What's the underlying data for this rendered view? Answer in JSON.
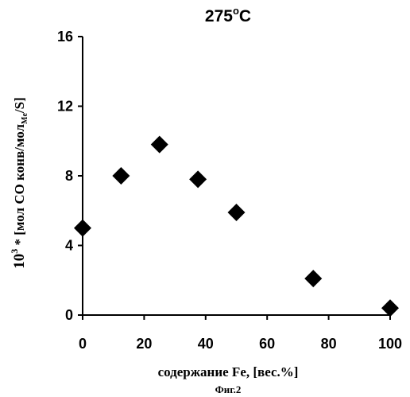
{
  "chart_data": {
    "type": "scatter",
    "title": "275°C",
    "title_main": "275",
    "title_degree": "o",
    "title_unit": "C",
    "xlabel": "содержание Fe, [вес.%]",
    "ylabel_prefix": "10",
    "ylabel_exp": "3",
    "ylabel_main": " * [мол CO конв/мол",
    "ylabel_sub": "Me",
    "ylabel_tail": "/S]",
    "caption": "Фиг.2",
    "xlim": [
      0,
      100
    ],
    "ylim": [
      0,
      16
    ],
    "xticks": [
      "0",
      "20",
      "40",
      "60",
      "80",
      "100"
    ],
    "yticks": [
      "0",
      "4",
      "8",
      "12",
      "16"
    ],
    "grid": false,
    "marker": "diamond",
    "marker_color": "#000000",
    "points": [
      {
        "x": 0,
        "y": 5.0
      },
      {
        "x": 12.5,
        "y": 8.0
      },
      {
        "x": 25,
        "y": 9.8
      },
      {
        "x": 37.5,
        "y": 7.8
      },
      {
        "x": 50,
        "y": 5.9
      },
      {
        "x": 75,
        "y": 2.1
      },
      {
        "x": 100,
        "y": 0.4
      }
    ]
  }
}
